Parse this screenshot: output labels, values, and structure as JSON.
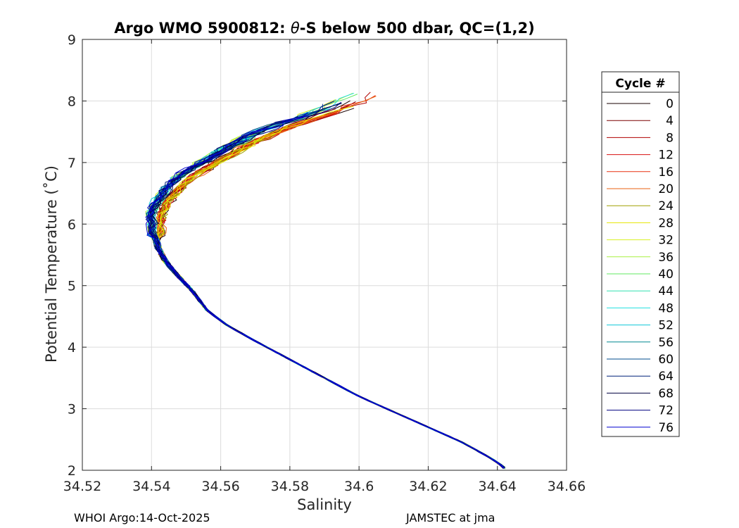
{
  "chart_data": {
    "type": "line",
    "title": "Argo WMO 5900812: θ-S below 500 dbar,  QC=(1,2)",
    "title_prefix": "Argo WMO 5900812: ",
    "title_theta": "θ",
    "title_suffix": "-S below 500 dbar,  QC=(1,2)",
    "xlabel": "Salinity",
    "ylabel": "Potential Temperature (˚C)",
    "xlim": [
      34.52,
      34.66
    ],
    "ylim": [
      2,
      9
    ],
    "x_ticks": [
      "34.52",
      "34.54",
      "34.56",
      "34.58",
      "34.6",
      "34.62",
      "34.64",
      "34.66"
    ],
    "y_ticks": [
      "2",
      "3",
      "4",
      "5",
      "6",
      "7",
      "8",
      "9"
    ],
    "grid": true,
    "legend": {
      "title": "Cycle #",
      "placement": "right-outside",
      "entries": [
        {
          "label": "0",
          "color": "#1a0000"
        },
        {
          "label": "4",
          "color": "#7a0000"
        },
        {
          "label": "8",
          "color": "#b00000"
        },
        {
          "label": "12",
          "color": "#d81010"
        },
        {
          "label": "16",
          "color": "#e83010"
        },
        {
          "label": "20",
          "color": "#e86010"
        },
        {
          "label": "24",
          "color": "#a0a000"
        },
        {
          "label": "28",
          "color": "#e6e600"
        },
        {
          "label": "32",
          "color": "#d8f020"
        },
        {
          "label": "36",
          "color": "#a8f040"
        },
        {
          "label": "40",
          "color": "#60e860"
        },
        {
          "label": "44",
          "color": "#30e0b0"
        },
        {
          "label": "48",
          "color": "#20e0e0"
        },
        {
          "label": "52",
          "color": "#10c8d8"
        },
        {
          "label": "56",
          "color": "#008890"
        },
        {
          "label": "60",
          "color": "#004c8c"
        },
        {
          "label": "64",
          "color": "#00207a"
        },
        {
          "label": "68",
          "color": "#000040"
        },
        {
          "label": "72",
          "color": "#000080"
        },
        {
          "label": "76",
          "color": "#0000d0"
        }
      ]
    },
    "mean_profile": {
      "salinity": [
        34.6,
        34.595,
        34.588,
        34.58,
        34.573,
        34.567,
        34.562,
        34.556,
        34.55,
        34.546,
        34.543,
        34.541,
        34.541,
        34.541,
        34.542,
        34.544,
        34.547,
        34.552,
        34.556,
        34.562,
        34.57,
        34.58,
        34.59,
        34.6,
        34.61,
        34.62,
        34.63,
        34.638,
        34.642
      ],
      "theta": [
        8.1,
        7.95,
        7.8,
        7.65,
        7.5,
        7.35,
        7.2,
        7.0,
        6.8,
        6.6,
        6.4,
        6.2,
        6.0,
        5.8,
        5.6,
        5.4,
        5.2,
        4.9,
        4.6,
        4.35,
        4.1,
        3.8,
        3.5,
        3.2,
        2.95,
        2.7,
        2.45,
        2.2,
        2.05
      ]
    },
    "series": [
      {
        "name": "Cycle 0",
        "color": "#1a0000"
      },
      {
        "name": "Cycle 4",
        "color": "#7a0000"
      },
      {
        "name": "Cycle 8",
        "color": "#b00000"
      },
      {
        "name": "Cycle 12",
        "color": "#d81010"
      },
      {
        "name": "Cycle 16",
        "color": "#e83010"
      },
      {
        "name": "Cycle 20",
        "color": "#e86010"
      },
      {
        "name": "Cycle 24",
        "color": "#a0a000"
      },
      {
        "name": "Cycle 28",
        "color": "#e6e600"
      },
      {
        "name": "Cycle 32",
        "color": "#d8f020"
      },
      {
        "name": "Cycle 36",
        "color": "#a8f040"
      },
      {
        "name": "Cycle 40",
        "color": "#60e860"
      },
      {
        "name": "Cycle 44",
        "color": "#30e0b0"
      },
      {
        "name": "Cycle 48",
        "color": "#20e0e0"
      },
      {
        "name": "Cycle 52",
        "color": "#10c8d8"
      },
      {
        "name": "Cycle 56",
        "color": "#008890"
      },
      {
        "name": "Cycle 60",
        "color": "#004c8c"
      },
      {
        "name": "Cycle 64",
        "color": "#00207a"
      },
      {
        "name": "Cycle 68",
        "color": "#000040"
      },
      {
        "name": "Cycle 72",
        "color": "#000080"
      },
      {
        "name": "Cycle 76",
        "color": "#0000d0"
      }
    ]
  },
  "footer": {
    "left": "WHOI Argo:14-Oct-2025",
    "right": "JAMSTEC at jma"
  }
}
